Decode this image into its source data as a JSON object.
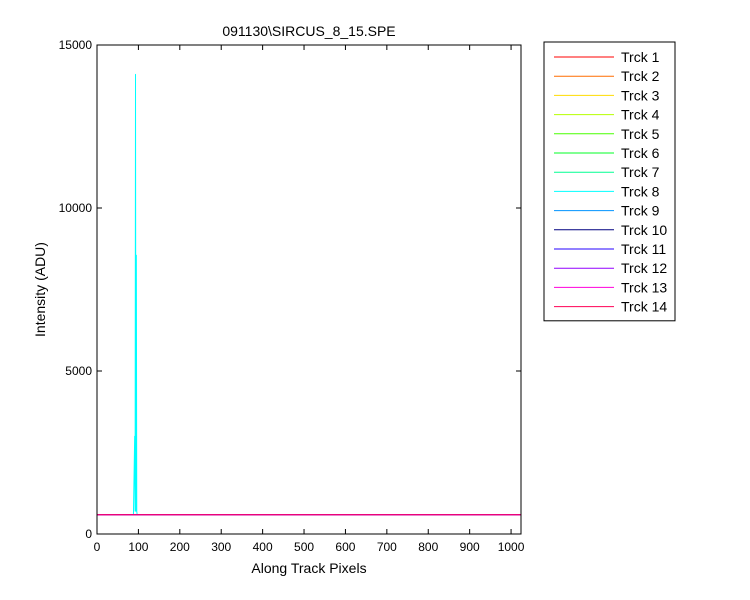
{
  "chart_data": {
    "type": "line",
    "title": "091130\\SIRCUS_8_15.SPE",
    "xlabel": "Along Track Pixels",
    "ylabel": "Intensity (ADU)",
    "xlim": [
      0,
      1024
    ],
    "ylim": [
      0,
      15000
    ],
    "xticks": [
      0,
      100,
      200,
      300,
      400,
      500,
      600,
      700,
      800,
      900,
      1000
    ],
    "yticks": [
      0,
      5000,
      10000,
      15000
    ],
    "grid": false,
    "legend_position": "outside-right",
    "baseline_value": 590,
    "series": [
      {
        "name": "Trck 1",
        "color": "#ff0000",
        "x": [
          0,
          1024
        ],
        "y": [
          590,
          590
        ]
      },
      {
        "name": "Trck 2",
        "color": "#ff6d00",
        "x": [
          0,
          1024
        ],
        "y": [
          590,
          590
        ]
      },
      {
        "name": "Trck 3",
        "color": "#ffdb00",
        "x": [
          0,
          1024
        ],
        "y": [
          590,
          590
        ]
      },
      {
        "name": "Trck 4",
        "color": "#b6ff00",
        "x": [
          0,
          1024
        ],
        "y": [
          590,
          590
        ]
      },
      {
        "name": "Trck 5",
        "color": "#49ff00",
        "x": [
          0,
          1024
        ],
        "y": [
          590,
          590
        ]
      },
      {
        "name": "Trck 6",
        "color": "#00ff24",
        "x": [
          0,
          1024
        ],
        "y": [
          590,
          590
        ]
      },
      {
        "name": "Trck 7",
        "color": "#00ff92",
        "x": [
          0,
          1024
        ],
        "y": [
          590,
          590
        ]
      },
      {
        "name": "Trck 8",
        "color": "#00ffff",
        "x": [
          0,
          88,
          91,
          92,
          93,
          94,
          95,
          96,
          97,
          1024
        ],
        "y": [
          590,
          590,
          3000,
          700,
          14100,
          700,
          8550,
          700,
          590,
          590
        ]
      },
      {
        "name": "Trck 9",
        "color": "#0092ff",
        "x": [
          0,
          1024
        ],
        "y": [
          590,
          590
        ]
      },
      {
        "name": "Trck 10",
        "color": "#000080",
        "x": [
          0,
          1024
        ],
        "y": [
          590,
          590
        ]
      },
      {
        "name": "Trck 11",
        "color": "#2400ff",
        "x": [
          0,
          1024
        ],
        "y": [
          590,
          590
        ]
      },
      {
        "name": "Trck 12",
        "color": "#9200ff",
        "x": [
          0,
          1024
        ],
        "y": [
          590,
          590
        ]
      },
      {
        "name": "Trck 13",
        "color": "#ff00db",
        "x": [
          0,
          1024
        ],
        "y": [
          590,
          590
        ]
      },
      {
        "name": "Trck 14",
        "color": "#ff0055",
        "x": [
          0,
          1024
        ],
        "y": [
          590,
          590
        ]
      }
    ]
  }
}
